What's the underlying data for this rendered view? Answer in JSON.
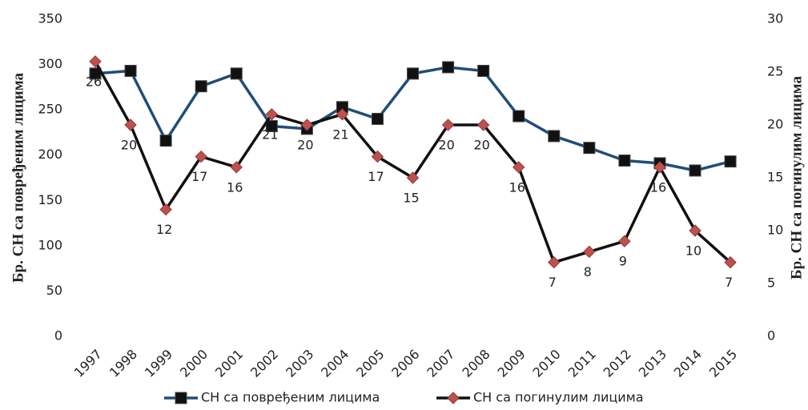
{
  "chart_data": {
    "type": "line",
    "categories": [
      "1997",
      "1998",
      "1999",
      "2000",
      "2001",
      "2002",
      "2003",
      "2004",
      "2005",
      "2006",
      "2007",
      "2008",
      "2009",
      "2010",
      "2011",
      "2012",
      "2013",
      "2014",
      "2015"
    ],
    "ylabel": "Бр. СН са повређеним лицима",
    "y2label": "Бр. СН са погинулим лицима",
    "ylim": [
      0,
      350
    ],
    "yticks": [
      0,
      50,
      100,
      150,
      200,
      250,
      300,
      350
    ],
    "y2lim": [
      0,
      30
    ],
    "y2ticks": [
      0,
      5,
      10,
      15,
      20,
      25,
      30
    ],
    "grid": false,
    "legend": "bottom",
    "series": [
      {
        "name": "СН са повређеним лицима",
        "color": "#1f4e79",
        "marker_color": "#111111",
        "marker": "square",
        "values": [
          290,
          293,
          216,
          276,
          290,
          232,
          229,
          253,
          240,
          290,
          297,
          293,
          243,
          221,
          208,
          194,
          191,
          183,
          193
        ]
      },
      {
        "name": "СН са погинулим лицима",
        "color": "#111111",
        "marker_color": "#c0504d",
        "marker": "diamond",
        "axis": "y2",
        "show_labels": true,
        "values": [
          26,
          20,
          12,
          17,
          16,
          21,
          20,
          21,
          17,
          15,
          20,
          20,
          16,
          7,
          8,
          9,
          16,
          10,
          7
        ]
      }
    ]
  }
}
